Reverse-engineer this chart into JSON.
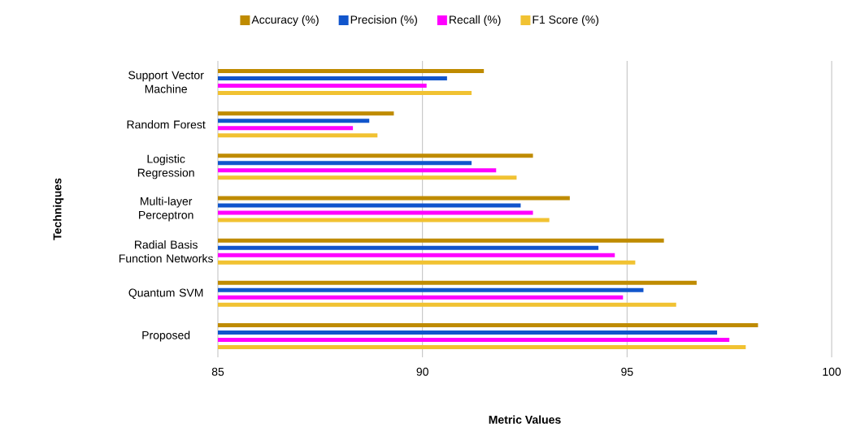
{
  "chart_data": {
    "type": "bar",
    "orientation": "horizontal",
    "xlabel": "Metric Values",
    "ylabel": "Techniques",
    "categories": [
      "Support Vector Machine",
      "Random Forest",
      "Logistic Regression",
      "Multi-layer Perceptron",
      "Radial Basis Function Networks",
      "Quantum SVM",
      "Proposed"
    ],
    "series": [
      {
        "name": "Accuracy (%)",
        "color": "#bf8b00",
        "values": [
          91.5,
          89.3,
          92.7,
          93.6,
          95.9,
          96.7,
          98.2
        ]
      },
      {
        "name": "Precision (%)",
        "color": "#1155cc",
        "values": [
          90.6,
          88.7,
          91.2,
          92.4,
          94.3,
          95.4,
          97.2
        ]
      },
      {
        "name": "Recall (%)",
        "color": "#ff00ff",
        "values": [
          90.1,
          88.3,
          91.8,
          92.7,
          94.7,
          94.9,
          97.5
        ]
      },
      {
        "name": "F1 Score (%)",
        "color": "#f1c232",
        "values": [
          91.2,
          88.9,
          92.3,
          93.1,
          95.2,
          96.2,
          97.9
        ]
      }
    ],
    "xlim": [
      85,
      100
    ],
    "xticks": [
      85,
      90,
      95,
      100
    ],
    "grid": "x",
    "legend": "top"
  }
}
